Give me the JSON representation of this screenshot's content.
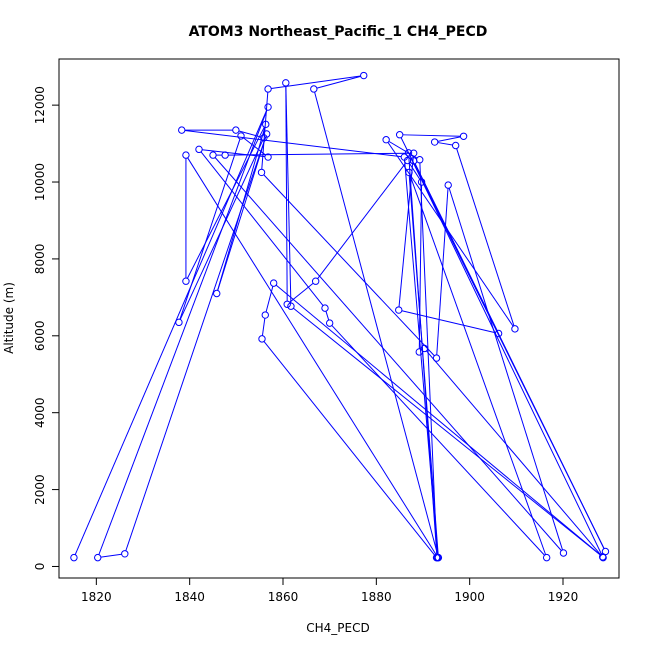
{
  "chart_data": {
    "type": "line",
    "title": "ATOM3 Northeast_Pacific_1 CH4_PECD",
    "xlabel": "CH4_PECD",
    "ylabel": "Altitude (m)",
    "xlim": [
      1812,
      1932
    ],
    "ylim": [
      -300,
      13200
    ],
    "xticks": [
      1820,
      1840,
      1860,
      1880,
      1900,
      1920
    ],
    "yticks": [
      0,
      2000,
      4000,
      6000,
      8000,
      10000,
      12000
    ],
    "grid": false,
    "color": "#0000ff",
    "marker": "open-circle",
    "series": [
      {
        "name": "",
        "points": [
          [
            1815.2,
            230
          ],
          [
            1856.8,
            11950
          ],
          [
            1820.3,
            230
          ],
          [
            1826.1,
            330
          ],
          [
            1856.5,
            11250
          ],
          [
            1845.8,
            7100
          ],
          [
            1856.3,
            11500
          ],
          [
            1839.2,
            7420
          ],
          [
            1839.2,
            10700
          ],
          [
            1893.2,
            230
          ],
          [
            1886.0,
            10650
          ],
          [
            1838.3,
            11350
          ],
          [
            1849.9,
            11350
          ],
          [
            1855.9,
            11150
          ],
          [
            1837.7,
            6350
          ],
          [
            1851.0,
            11200
          ],
          [
            1856.8,
            10650
          ],
          [
            1842.0,
            10850
          ],
          [
            1869.0,
            6720
          ],
          [
            1870.0,
            6330
          ],
          [
            1916.5,
            230
          ],
          [
            1887.0,
            10250
          ],
          [
            1893.3,
            230
          ],
          [
            1866.6,
            12420
          ],
          [
            1877.3,
            12770
          ],
          [
            1856.8,
            12420
          ],
          [
            1855.4,
            10250
          ],
          [
            1892.9,
            5420
          ],
          [
            1895.4,
            9920
          ],
          [
            1920.1,
            350
          ],
          [
            1845.0,
            10700
          ],
          [
            1847.6,
            10700
          ],
          [
            1888.0,
            10750
          ],
          [
            1884.8,
            6670
          ],
          [
            1906.2,
            6060
          ],
          [
            1888.0,
            10550
          ],
          [
            1929.1,
            390
          ],
          [
            1885.0,
            11230
          ],
          [
            1898.7,
            11190
          ],
          [
            1892.5,
            11040
          ],
          [
            1897.0,
            10950
          ],
          [
            1909.7,
            6180
          ],
          [
            1882.1,
            11100
          ],
          [
            1889.3,
            10580
          ],
          [
            1893.0,
            230
          ],
          [
            1886.9,
            10760
          ],
          [
            1928.6,
            230
          ],
          [
            1890.3,
            5670
          ],
          [
            1889.2,
            5580
          ],
          [
            1889.7,
            10000
          ],
          [
            1886.7,
            10560
          ],
          [
            1867.0,
            7420
          ],
          [
            1860.9,
            6820
          ],
          [
            1860.6,
            12580
          ],
          [
            1861.7,
            6770
          ],
          [
            1928.5,
            250
          ],
          [
            1858.0,
            7370
          ],
          [
            1856.2,
            6540
          ],
          [
            1855.5,
            5920
          ],
          [
            1892.9,
            230
          ]
        ]
      }
    ]
  }
}
